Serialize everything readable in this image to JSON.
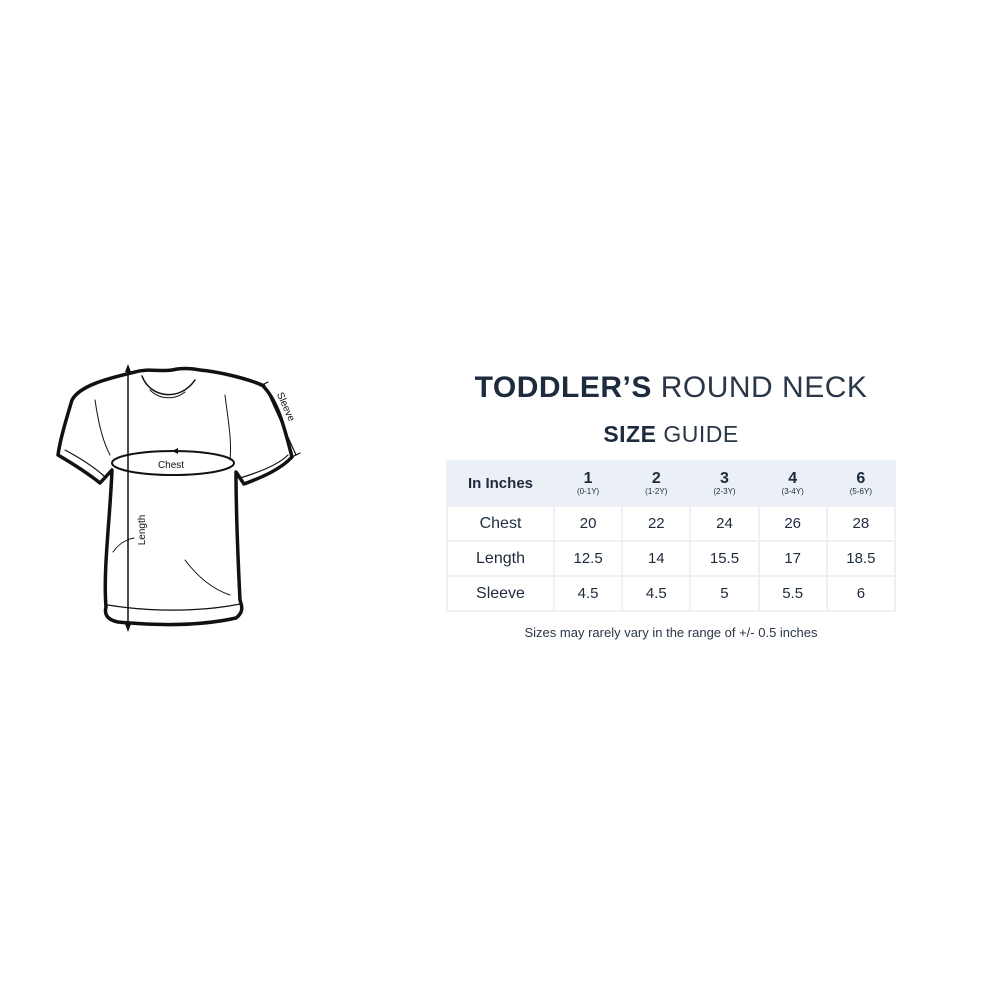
{
  "title": {
    "bold": "TODDLER’S",
    "light": "ROUND NECK"
  },
  "subtitle": {
    "bold": "SIZE",
    "light": "GUIDE"
  },
  "diagram": {
    "labels": {
      "chest": "Chest",
      "length": "Length",
      "sleeve": "Sleeve"
    }
  },
  "table": {
    "corner": "In Inches",
    "sizes": [
      {
        "size": "1",
        "age": "(0-1Y)"
      },
      {
        "size": "2",
        "age": "(1-2Y)"
      },
      {
        "size": "3",
        "age": "(2-3Y)"
      },
      {
        "size": "4",
        "age": "(3-4Y)"
      },
      {
        "size": "6",
        "age": "(5-6Y)"
      }
    ],
    "rows": [
      {
        "label": "Chest",
        "values": [
          "20",
          "22",
          "24",
          "26",
          "28"
        ]
      },
      {
        "label": "Length",
        "values": [
          "12.5",
          "14",
          "15.5",
          "17",
          "18.5"
        ]
      },
      {
        "label": "Sleeve",
        "values": [
          "4.5",
          "4.5",
          "5",
          "5.5",
          "6"
        ]
      }
    ]
  },
  "note": "Sizes may rarely vary in the range of +/- 0.5 inches"
}
